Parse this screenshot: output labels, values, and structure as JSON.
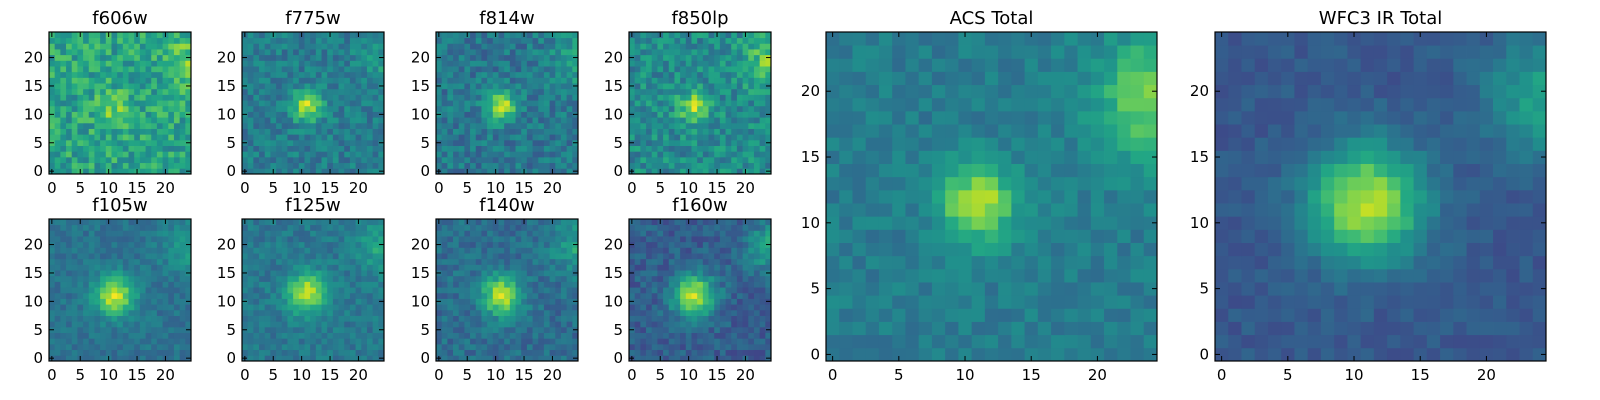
{
  "chart_data": {
    "type": "heatmap",
    "description_free": true,
    "colormap": "viridis",
    "grid_size": 25,
    "panels": [
      {
        "title": "f606w",
        "xticks": [
          0,
          5,
          10,
          15,
          20
        ],
        "yticks": [
          0,
          5,
          10,
          15,
          20
        ],
        "xlim": [
          0,
          25
        ],
        "ylim": [
          0,
          25
        ],
        "center": [
          11,
          11
        ],
        "peak": 0.18,
        "sigma": 2.2,
        "noise": 0.32,
        "base": 0.58,
        "corner_glow": 0.18,
        "seed": 11
      },
      {
        "title": "f775w",
        "xticks": [
          0,
          5,
          10,
          15,
          20
        ],
        "yticks": [
          0,
          5,
          10,
          15,
          20
        ],
        "xlim": [
          0,
          25
        ],
        "ylim": [
          0,
          25
        ],
        "center": [
          11,
          11.5
        ],
        "peak": 0.48,
        "sigma": 1.9,
        "noise": 0.22,
        "base": 0.42,
        "corner_glow": 0.12,
        "seed": 23
      },
      {
        "title": "f814w",
        "xticks": [
          0,
          5,
          10,
          15,
          20
        ],
        "yticks": [
          0,
          5,
          10,
          15,
          20
        ],
        "xlim": [
          0,
          25
        ],
        "ylim": [
          0,
          25
        ],
        "center": [
          11,
          11.5
        ],
        "peak": 0.52,
        "sigma": 1.8,
        "noise": 0.24,
        "base": 0.4,
        "corner_glow": 0.22,
        "seed": 37
      },
      {
        "title": "f850lp",
        "xticks": [
          0,
          5,
          10,
          15,
          20
        ],
        "yticks": [
          0,
          5,
          10,
          15,
          20
        ],
        "xlim": [
          0,
          25
        ],
        "ylim": [
          0,
          25
        ],
        "center": [
          11,
          11.5
        ],
        "peak": 0.38,
        "sigma": 1.9,
        "noise": 0.28,
        "base": 0.48,
        "corner_glow": 0.28,
        "seed": 41
      },
      {
        "title": "f105w",
        "xticks": [
          0,
          5,
          10,
          15,
          20
        ],
        "yticks": [
          0,
          5,
          10,
          15,
          20
        ],
        "xlim": [
          0,
          25
        ],
        "ylim": [
          0,
          25
        ],
        "center": [
          11,
          11
        ],
        "peak": 0.55,
        "sigma": 2.4,
        "noise": 0.14,
        "base": 0.38,
        "corner_glow": 0.2,
        "seed": 53
      },
      {
        "title": "f125w",
        "xticks": [
          0,
          5,
          10,
          15,
          20
        ],
        "yticks": [
          0,
          5,
          10,
          15,
          20
        ],
        "xlim": [
          0,
          25
        ],
        "ylim": [
          0,
          25
        ],
        "center": [
          11,
          11.5
        ],
        "peak": 0.52,
        "sigma": 2.4,
        "noise": 0.16,
        "base": 0.4,
        "corner_glow": 0.2,
        "seed": 61
      },
      {
        "title": "f140w",
        "xticks": [
          0,
          5,
          10,
          15,
          20
        ],
        "yticks": [
          0,
          5,
          10,
          15,
          20
        ],
        "xlim": [
          0,
          25
        ],
        "ylim": [
          0,
          25
        ],
        "center": [
          11,
          11
        ],
        "peak": 0.55,
        "sigma": 2.4,
        "noise": 0.18,
        "base": 0.36,
        "corner_glow": 0.22,
        "seed": 71
      },
      {
        "title": "f160w",
        "xticks": [
          0,
          5,
          10,
          15,
          20
        ],
        "yticks": [
          0,
          5,
          10,
          15,
          20
        ],
        "xlim": [
          0,
          25
        ],
        "ylim": [
          0,
          25
        ],
        "center": [
          11,
          11
        ],
        "peak": 0.62,
        "sigma": 2.6,
        "noise": 0.18,
        "base": 0.3,
        "corner_glow": 0.28,
        "seed": 83
      },
      {
        "title": "ACS Total",
        "xticks": [
          0,
          5,
          10,
          15,
          20
        ],
        "yticks": [
          0,
          5,
          10,
          15,
          20
        ],
        "xlim": [
          0,
          25
        ],
        "ylim": [
          0,
          25
        ],
        "center": [
          11,
          11.5
        ],
        "peak": 0.48,
        "sigma": 2.0,
        "noise": 0.14,
        "base": 0.42,
        "corner_glow": 0.38,
        "seed": 97
      },
      {
        "title": "WFC3 IR Total",
        "xticks": [
          0,
          5,
          10,
          15,
          20
        ],
        "yticks": [
          0,
          5,
          10,
          15,
          20
        ],
        "xlim": [
          0,
          25
        ],
        "ylim": [
          0,
          25
        ],
        "center": [
          11,
          11.5
        ],
        "peak": 0.62,
        "sigma": 3.0,
        "noise": 0.1,
        "base": 0.28,
        "corner_glow": 0.3,
        "seed": 101
      }
    ]
  }
}
